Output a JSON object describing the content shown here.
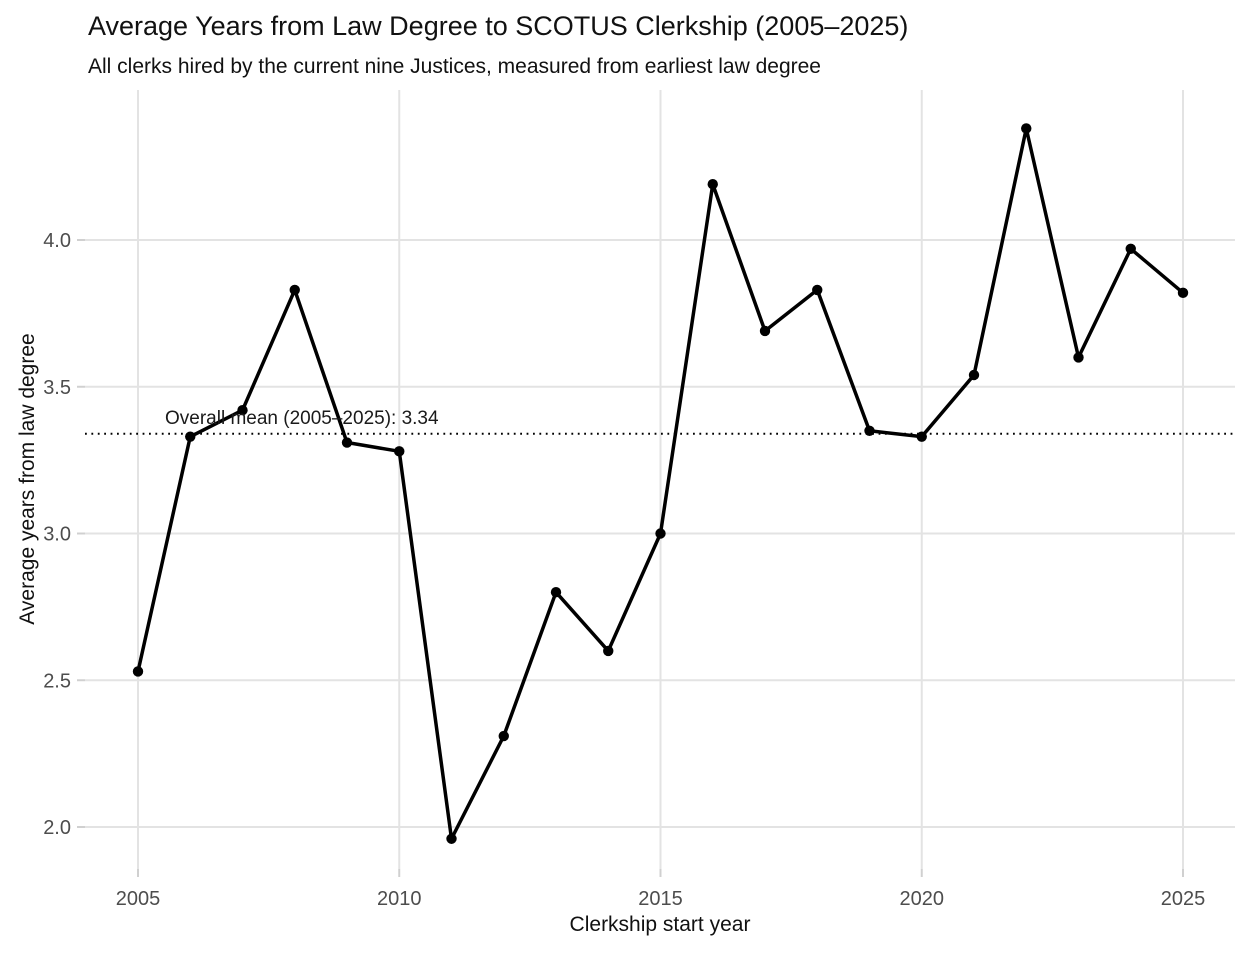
{
  "chart_data": {
    "type": "line",
    "title": "Average Years from Law Degree to SCOTUS Clerkship (2005–2025)",
    "subtitle": "All clerks hired by the current nine Justices, measured from earliest law degree",
    "xlabel": "Clerkship start year",
    "ylabel": "Average years from law degree",
    "x": [
      2005,
      2006,
      2007,
      2008,
      2009,
      2010,
      2011,
      2012,
      2013,
      2014,
      2015,
      2016,
      2017,
      2018,
      2019,
      2020,
      2021,
      2022,
      2023,
      2024,
      2025
    ],
    "y": [
      2.53,
      3.33,
      3.42,
      3.83,
      3.31,
      3.28,
      1.96,
      2.31,
      2.8,
      2.6,
      3.0,
      4.19,
      3.69,
      3.83,
      3.35,
      3.33,
      3.54,
      4.38,
      3.6,
      3.97,
      3.82
    ],
    "xticks": [
      2005,
      2010,
      2015,
      2020,
      2025
    ],
    "xtick_labels": [
      "2005",
      "2010",
      "2015",
      "2020",
      "2025"
    ],
    "yticks": [
      2.0,
      2.5,
      3.0,
      3.5,
      4.0
    ],
    "ytick_labels": [
      "2.0",
      "2.5",
      "3.0",
      "3.5",
      "4.0"
    ],
    "xlim": [
      2004.0,
      2026.0
    ],
    "ylim": [
      1.86,
      4.51
    ],
    "grid": "major-only",
    "legend": "none",
    "mean_line": {
      "value": 3.34,
      "label": "Overall mean (2005–2025): 3.34",
      "style": "dotted"
    },
    "colors": {
      "series": "#000000",
      "marker": "#000000",
      "mean_line": "#000000",
      "grid": "#e3e3e3",
      "tick_mark": "#d0d0d0",
      "tick_label": "#4d4d4d",
      "text": "#111111",
      "background": "#ffffff"
    }
  }
}
